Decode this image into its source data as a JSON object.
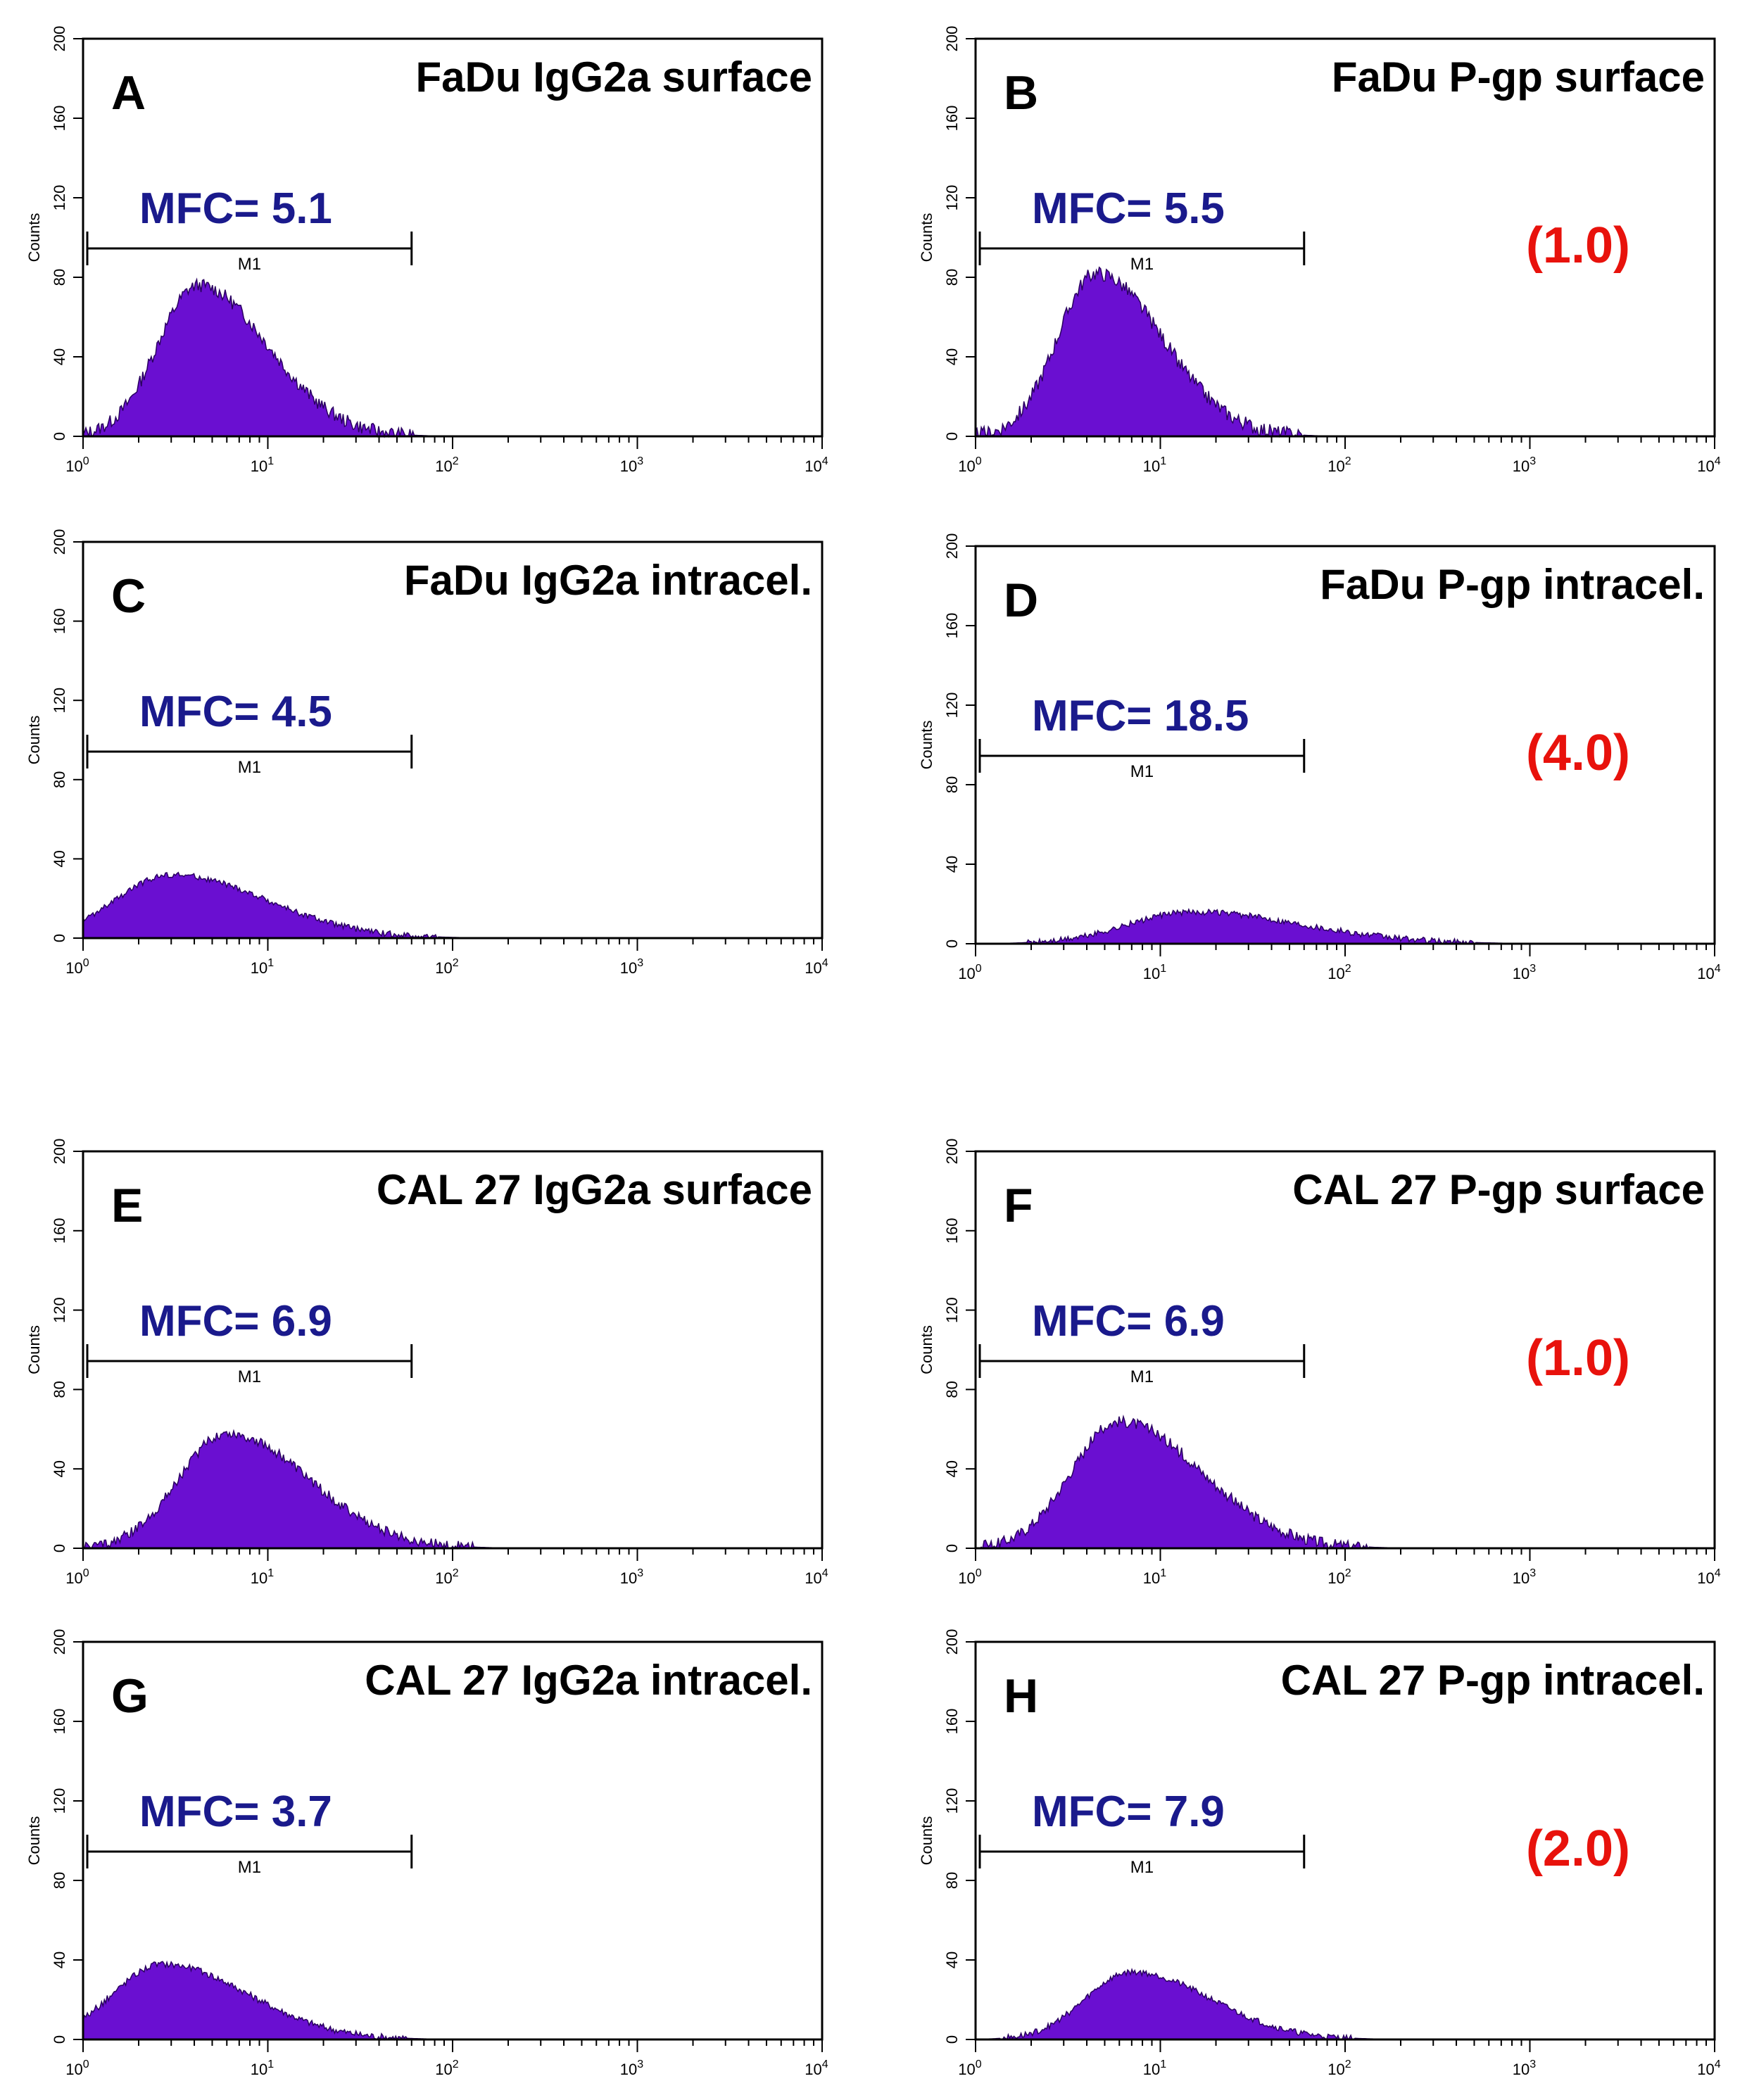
{
  "colors": {
    "histogram_fill": "#6a0fd1",
    "mfc_text": "#1a1a8c",
    "fold_text": "#e8120c",
    "axis": "#000000"
  },
  "chart_data": [
    {
      "panel": "A",
      "title": "FaDu IgG2a surface",
      "type": "area",
      "xlabel": "",
      "ylabel": "Counts",
      "xscale": "log",
      "xlim": [
        1,
        10000
      ],
      "ylim": [
        0,
        200
      ],
      "x_ticks": [
        "10",
        "10",
        "10",
        "10",
        "10"
      ],
      "x_tick_exponents": [
        "0",
        "1",
        "2",
        "3",
        "4"
      ],
      "y_ticks": [
        "0",
        "40",
        "80",
        "120",
        "160",
        "200"
      ],
      "gate": {
        "label": "M1",
        "range": [
          1,
          60
        ]
      },
      "mfc": "MFC= 5.1",
      "fold": "",
      "peak_x": 4.2,
      "peak_y": 76,
      "width": 0.22,
      "base_y": 0
    },
    {
      "panel": "B",
      "title": "FaDu P-gp surface",
      "type": "area",
      "xlabel": "",
      "ylabel": "Counts",
      "xscale": "log",
      "xlim": [
        1,
        10000
      ],
      "ylim": [
        0,
        200
      ],
      "x_ticks": [
        "10",
        "10",
        "10",
        "10",
        "10"
      ],
      "x_tick_exponents": [
        "0",
        "1",
        "2",
        "3",
        "4"
      ],
      "y_ticks": [
        "0",
        "40",
        "80",
        "120",
        "160",
        "200"
      ],
      "gate": {
        "label": "M1",
        "range": [
          1,
          60
        ]
      },
      "mfc": "MFC= 5.5",
      "fold": "(1.0)",
      "peak_x": 4.5,
      "peak_y": 82,
      "width": 0.21,
      "base_y": 0
    },
    {
      "panel": "C",
      "title": "FaDu IgG2a intracel.",
      "type": "area",
      "xlabel": "",
      "ylabel": "Counts",
      "xscale": "log",
      "xlim": [
        1,
        10000
      ],
      "ylim": [
        0,
        200
      ],
      "x_ticks": [
        "10",
        "10",
        "10",
        "10",
        "10"
      ],
      "x_tick_exponents": [
        "0",
        "1",
        "2",
        "3",
        "4"
      ],
      "y_ticks": [
        "0",
        "40",
        "80",
        "120",
        "160",
        "200"
      ],
      "gate": {
        "label": "M1",
        "range": [
          1,
          60
        ]
      },
      "mfc": "MFC= 4.5",
      "fold": "",
      "peak_x": 3.0,
      "peak_y": 32,
      "width": 0.3,
      "base_y": 0
    },
    {
      "panel": "D",
      "title": "FaDu P-gp intracel.",
      "type": "area",
      "xlabel": "",
      "ylabel": "Counts",
      "xscale": "log",
      "xlim": [
        1,
        10000
      ],
      "ylim": [
        0,
        200
      ],
      "x_ticks": [
        "10",
        "10",
        "10",
        "10",
        "10"
      ],
      "x_tick_exponents": [
        "0",
        "1",
        "2",
        "3",
        "4"
      ],
      "y_ticks": [
        "0",
        "40",
        "80",
        "120",
        "160",
        "200"
      ],
      "gate": {
        "label": "M1",
        "range": [
          1,
          60
        ]
      },
      "mfc": "MFC= 18.5",
      "fold": "(4.0)",
      "peak_x": 15,
      "peak_y": 16,
      "width": 0.35,
      "base_y": 0
    },
    {
      "panel": "E",
      "title": "CAL 27 IgG2a surface",
      "type": "area",
      "xlabel": "",
      "ylabel": "Counts",
      "xscale": "log",
      "xlim": [
        1,
        10000
      ],
      "ylim": [
        0,
        200
      ],
      "x_ticks": [
        "10",
        "10",
        "10",
        "10",
        "10"
      ],
      "x_tick_exponents": [
        "0",
        "1",
        "2",
        "3",
        "4"
      ],
      "y_ticks": [
        "0",
        "40",
        "80",
        "120",
        "160",
        "200"
      ],
      "gate": {
        "label": "M1",
        "range": [
          1,
          60
        ]
      },
      "mfc": "MFC= 6.9",
      "fold": "",
      "peak_x": 6.0,
      "peak_y": 58,
      "width": 0.26,
      "base_y": 0
    },
    {
      "panel": "F",
      "title": "CAL 27 P-gp surface",
      "type": "area",
      "xlabel": "",
      "ylabel": "Counts",
      "xscale": "log",
      "xlim": [
        1,
        10000
      ],
      "ylim": [
        0,
        200
      ],
      "x_ticks": [
        "10",
        "10",
        "10",
        "10",
        "10"
      ],
      "x_tick_exponents": [
        "0",
        "1",
        "2",
        "3",
        "4"
      ],
      "y_ticks": [
        "0",
        "40",
        "80",
        "120",
        "160",
        "200"
      ],
      "gate": {
        "label": "M1",
        "range": [
          1,
          60
        ]
      },
      "mfc": "MFC= 6.9",
      "fold": "(1.0)",
      "peak_x": 6.0,
      "peak_y": 64,
      "width": 0.26,
      "base_y": 0
    },
    {
      "panel": "G",
      "title": "CAL 27 IgG2a intracel.",
      "type": "area",
      "xlabel": "",
      "ylabel": "Counts",
      "xscale": "log",
      "xlim": [
        1,
        10000
      ],
      "ylim": [
        0,
        200
      ],
      "x_ticks": [
        "10",
        "10",
        "10",
        "10",
        "10"
      ],
      "x_tick_exponents": [
        "0",
        "1",
        "2",
        "3",
        "4"
      ],
      "y_ticks": [
        "0",
        "40",
        "80",
        "120",
        "160",
        "200"
      ],
      "gate": {
        "label": "M1",
        "range": [
          1,
          60
        ]
      },
      "mfc": "MFC= 3.7",
      "fold": "",
      "peak_x": 2.7,
      "peak_y": 38,
      "width": 0.27,
      "base_y": 0
    },
    {
      "panel": "H",
      "title": "CAL 27 P-gp intracel.",
      "type": "area",
      "xlabel": "",
      "ylabel": "Counts",
      "xscale": "log",
      "xlim": [
        1,
        10000
      ],
      "ylim": [
        0,
        200
      ],
      "x_ticks": [
        "10",
        "10",
        "10",
        "10",
        "10"
      ],
      "x_tick_exponents": [
        "0",
        "1",
        "2",
        "3",
        "4"
      ],
      "y_ticks": [
        "0",
        "40",
        "80",
        "120",
        "160",
        "200"
      ],
      "gate": {
        "label": "M1",
        "range": [
          1,
          60
        ]
      },
      "mfc": "MFC= 7.9",
      "fold": "(2.0)",
      "peak_x": 7.0,
      "peak_y": 34,
      "width": 0.25,
      "base_y": 0
    }
  ]
}
